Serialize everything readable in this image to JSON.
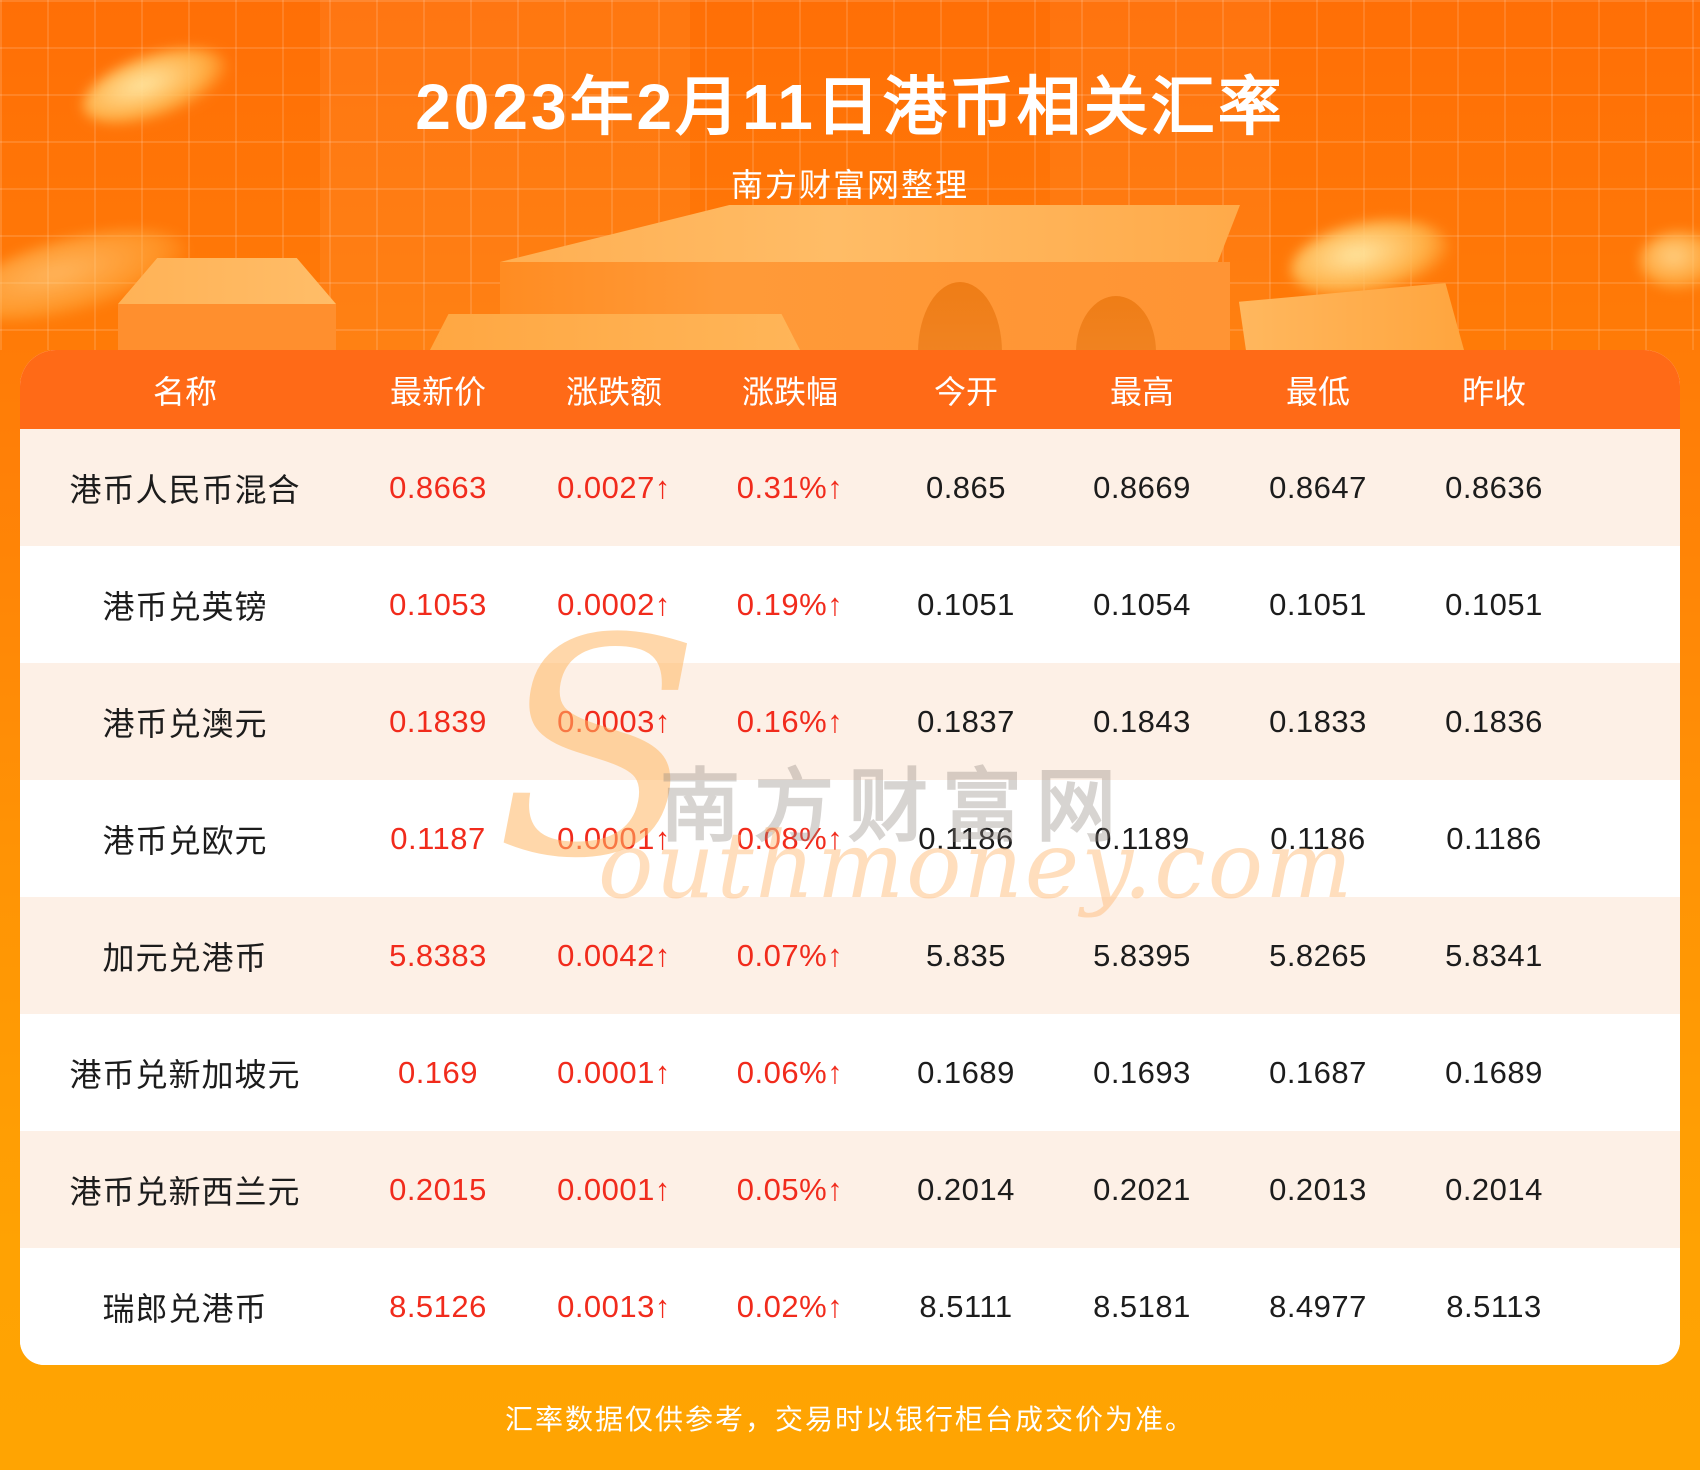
{
  "header": {
    "title": "2023年2月11日港币相关汇率",
    "subtitle": "南方财富网整理"
  },
  "footer": {
    "note": "汇率数据仅供参考，交易时以银行柜台成交价为准。"
  },
  "watermark": {
    "swoosh": "S",
    "text_cn": "南方财富网",
    "text_en": "outhmoney.com"
  },
  "colors": {
    "hero_orange_top": "#ff6f06",
    "amber_bottom": "#ffa402",
    "table_header_bg": "#ff6a17",
    "row_alt_bg": "#fdf0e6",
    "row_bg": "#ffffff",
    "up_red": "#f12b1c",
    "text_dark": "#1c1c1c"
  },
  "chart_data": {
    "type": "table",
    "title": "2023年2月11日港币相关汇率",
    "columns": [
      "名称",
      "最新价",
      "涨跌额",
      "涨跌幅",
      "今开",
      "最高",
      "最低",
      "昨收"
    ],
    "rows": [
      {
        "name": "港币人民币混合",
        "latest": "0.8663",
        "change": "0.0027↑",
        "pct": "0.31%↑",
        "open": "0.865",
        "high": "0.8669",
        "low": "0.8647",
        "prev": "0.8636"
      },
      {
        "name": "港币兑英镑",
        "latest": "0.1053",
        "change": "0.0002↑",
        "pct": "0.19%↑",
        "open": "0.1051",
        "high": "0.1054",
        "low": "0.1051",
        "prev": "0.1051"
      },
      {
        "name": "港币兑澳元",
        "latest": "0.1839",
        "change": "0.0003↑",
        "pct": "0.16%↑",
        "open": "0.1837",
        "high": "0.1843",
        "low": "0.1833",
        "prev": "0.1836"
      },
      {
        "name": "港币兑欧元",
        "latest": "0.1187",
        "change": "0.0001↑",
        "pct": "0.08%↑",
        "open": "0.1186",
        "high": "0.1189",
        "low": "0.1186",
        "prev": "0.1186"
      },
      {
        "name": "加元兑港币",
        "latest": "5.8383",
        "change": "0.0042↑",
        "pct": "0.07%↑",
        "open": "5.835",
        "high": "5.8395",
        "low": "5.8265",
        "prev": "5.8341"
      },
      {
        "name": "港币兑新加坡元",
        "latest": "0.169",
        "change": "0.0001↑",
        "pct": "0.06%↑",
        "open": "0.1689",
        "high": "0.1693",
        "low": "0.1687",
        "prev": "0.1689"
      },
      {
        "name": "港币兑新西兰元",
        "latest": "0.2015",
        "change": "0.0001↑",
        "pct": "0.05%↑",
        "open": "0.2014",
        "high": "0.2021",
        "low": "0.2013",
        "prev": "0.2014"
      },
      {
        "name": "瑞郎兑港币",
        "latest": "8.5126",
        "change": "0.0013↑",
        "pct": "0.02%↑",
        "open": "8.5111",
        "high": "8.5181",
        "low": "8.4977",
        "prev": "8.5113"
      }
    ]
  }
}
